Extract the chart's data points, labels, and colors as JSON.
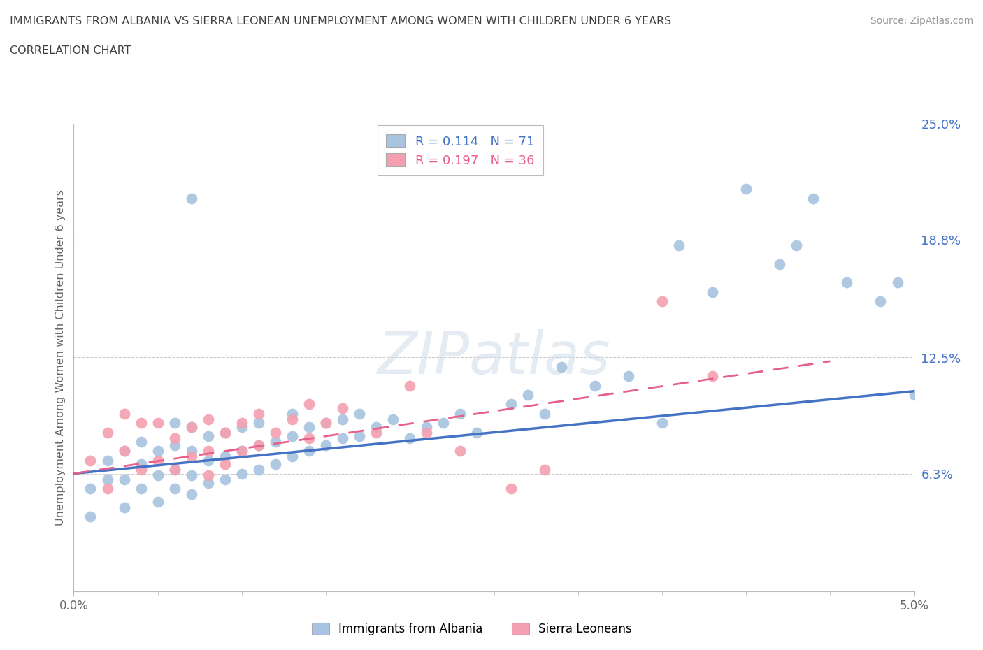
{
  "title_line1": "IMMIGRANTS FROM ALBANIA VS SIERRA LEONEAN UNEMPLOYMENT AMONG WOMEN WITH CHILDREN UNDER 6 YEARS",
  "title_line2": "CORRELATION CHART",
  "source": "Source: ZipAtlas.com",
  "ylabel": "Unemployment Among Women with Children Under 6 years",
  "xlim": [
    0.0,
    0.05
  ],
  "ylim": [
    0.0,
    0.25
  ],
  "x_tick_labels": [
    "0.0%",
    "5.0%"
  ],
  "y_ticks_right": [
    0.063,
    0.125,
    0.188,
    0.25
  ],
  "y_tick_labels_right": [
    "6.3%",
    "12.5%",
    "18.8%",
    "25.0%"
  ],
  "albania_R": 0.114,
  "albania_N": 71,
  "sierra_R": 0.197,
  "sierra_N": 36,
  "albania_color": "#a8c4e0",
  "sierra_color": "#f4a0b0",
  "albania_line_color": "#4472c4",
  "sierra_line_color": "#e8608a",
  "legend_label_albania": "Immigrants from Albania",
  "legend_label_sierra": "Sierra Leoneans",
  "watermark_text": "ZIPatlas",
  "background_color": "#ffffff",
  "grid_color": "#cccccc",
  "title_color": "#404040",
  "right_label_color": "#4472c4",
  "albania_line_x0": 0.0,
  "albania_line_y0": 0.063,
  "albania_line_x1": 0.05,
  "albania_line_y1": 0.107,
  "sierra_line_x0": 0.0,
  "sierra_line_y0": 0.063,
  "sierra_line_x1": 0.045,
  "sierra_line_y1": 0.123,
  "albania_scatter_x": [
    0.001,
    0.001,
    0.002,
    0.002,
    0.003,
    0.003,
    0.003,
    0.004,
    0.004,
    0.004,
    0.005,
    0.005,
    0.005,
    0.006,
    0.006,
    0.006,
    0.006,
    0.007,
    0.007,
    0.007,
    0.007,
    0.008,
    0.008,
    0.008,
    0.009,
    0.009,
    0.009,
    0.01,
    0.01,
    0.01,
    0.011,
    0.011,
    0.011,
    0.012,
    0.012,
    0.013,
    0.013,
    0.013,
    0.014,
    0.014,
    0.015,
    0.015,
    0.016,
    0.016,
    0.017,
    0.017,
    0.018,
    0.019,
    0.02,
    0.021,
    0.022,
    0.023,
    0.024,
    0.026,
    0.027,
    0.028,
    0.029,
    0.031,
    0.033,
    0.035,
    0.036,
    0.038,
    0.04,
    0.042,
    0.043,
    0.044,
    0.046,
    0.048,
    0.049,
    0.05,
    0.007
  ],
  "albania_scatter_y": [
    0.04,
    0.055,
    0.06,
    0.07,
    0.045,
    0.06,
    0.075,
    0.055,
    0.068,
    0.08,
    0.048,
    0.062,
    0.075,
    0.055,
    0.065,
    0.078,
    0.09,
    0.052,
    0.062,
    0.075,
    0.088,
    0.058,
    0.07,
    0.083,
    0.06,
    0.072,
    0.085,
    0.063,
    0.075,
    0.088,
    0.065,
    0.078,
    0.09,
    0.068,
    0.08,
    0.072,
    0.083,
    0.095,
    0.075,
    0.088,
    0.078,
    0.09,
    0.082,
    0.092,
    0.083,
    0.095,
    0.088,
    0.092,
    0.082,
    0.088,
    0.09,
    0.095,
    0.085,
    0.1,
    0.105,
    0.095,
    0.12,
    0.11,
    0.115,
    0.09,
    0.185,
    0.16,
    0.215,
    0.175,
    0.185,
    0.21,
    0.165,
    0.155,
    0.165,
    0.105,
    0.21
  ],
  "sierra_scatter_x": [
    0.001,
    0.002,
    0.002,
    0.003,
    0.003,
    0.004,
    0.004,
    0.005,
    0.005,
    0.006,
    0.006,
    0.007,
    0.007,
    0.008,
    0.008,
    0.008,
    0.009,
    0.009,
    0.01,
    0.01,
    0.011,
    0.011,
    0.012,
    0.013,
    0.014,
    0.014,
    0.015,
    0.016,
    0.018,
    0.02,
    0.021,
    0.023,
    0.026,
    0.028,
    0.035,
    0.038
  ],
  "sierra_scatter_y": [
    0.07,
    0.055,
    0.085,
    0.075,
    0.095,
    0.065,
    0.09,
    0.07,
    0.09,
    0.065,
    0.082,
    0.072,
    0.088,
    0.062,
    0.075,
    0.092,
    0.068,
    0.085,
    0.075,
    0.09,
    0.078,
    0.095,
    0.085,
    0.092,
    0.082,
    0.1,
    0.09,
    0.098,
    0.085,
    0.11,
    0.085,
    0.075,
    0.055,
    0.065,
    0.155,
    0.115
  ]
}
